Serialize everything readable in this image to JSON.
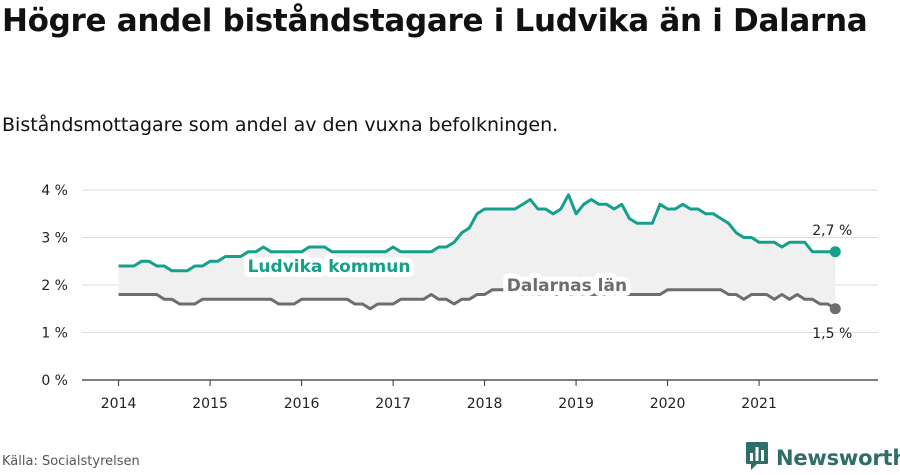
{
  "title": "Högre andel biståndstagare i Ludvika än i Dalarna",
  "subtitle": "Biståndsmottagare som andel av den vuxna befolkningen.",
  "source": "Källa: Socialstyrelsen",
  "brand": {
    "name": "Newsworthy",
    "icon": "newsworthy-bar-chart-logo-icon"
  },
  "colors": {
    "ludvika": "#15a08c",
    "dalarna": "#6d6d70",
    "band": "#f0f0f0",
    "grid": "#dddddd"
  },
  "chart_data": {
    "type": "line",
    "y_ticks": [
      "0 %",
      "1 %",
      "2 %",
      "3 %",
      "4 %"
    ],
    "ylim": [
      0,
      4
    ],
    "x_ticks": [
      "2014",
      "2015",
      "2016",
      "2017",
      "2018",
      "2019",
      "2020",
      "2021"
    ],
    "xlim": [
      2013.6,
      2022.3
    ],
    "grid": "horizontal",
    "x": [
      2014.0,
      2014.083,
      2014.167,
      2014.25,
      2014.333,
      2014.417,
      2014.5,
      2014.583,
      2014.667,
      2014.75,
      2014.833,
      2014.917,
      2015.0,
      2015.083,
      2015.167,
      2015.25,
      2015.333,
      2015.417,
      2015.5,
      2015.583,
      2015.667,
      2015.75,
      2015.833,
      2015.917,
      2016.0,
      2016.083,
      2016.167,
      2016.25,
      2016.333,
      2016.417,
      2016.5,
      2016.583,
      2016.667,
      2016.75,
      2016.833,
      2016.917,
      2017.0,
      2017.083,
      2017.167,
      2017.25,
      2017.333,
      2017.417,
      2017.5,
      2017.583,
      2017.667,
      2017.75,
      2017.833,
      2017.917,
      2018.0,
      2018.083,
      2018.167,
      2018.25,
      2018.333,
      2018.417,
      2018.5,
      2018.583,
      2018.667,
      2018.75,
      2018.833,
      2018.917,
      2019.0,
      2019.083,
      2019.167,
      2019.25,
      2019.333,
      2019.417,
      2019.5,
      2019.583,
      2019.667,
      2019.75,
      2019.833,
      2019.917,
      2020.0,
      2020.083,
      2020.167,
      2020.25,
      2020.333,
      2020.417,
      2020.5,
      2020.583,
      2020.667,
      2020.75,
      2020.833,
      2020.917,
      2021.0,
      2021.083,
      2021.167,
      2021.25,
      2021.333,
      2021.417,
      2021.5,
      2021.583,
      2021.667,
      2021.75,
      2021.833
    ],
    "series": [
      {
        "name": "Ludvika kommun",
        "end_label": "2,7 %",
        "values": [
          2.4,
          2.4,
          2.4,
          2.5,
          2.5,
          2.4,
          2.4,
          2.3,
          2.3,
          2.3,
          2.4,
          2.4,
          2.5,
          2.5,
          2.6,
          2.6,
          2.6,
          2.7,
          2.7,
          2.8,
          2.7,
          2.7,
          2.7,
          2.7,
          2.7,
          2.8,
          2.8,
          2.8,
          2.7,
          2.7,
          2.7,
          2.7,
          2.7,
          2.7,
          2.7,
          2.7,
          2.8,
          2.7,
          2.7,
          2.7,
          2.7,
          2.7,
          2.8,
          2.8,
          2.9,
          3.1,
          3.2,
          3.5,
          3.6,
          3.6,
          3.6,
          3.6,
          3.6,
          3.7,
          3.8,
          3.6,
          3.6,
          3.5,
          3.6,
          3.9,
          3.5,
          3.7,
          3.8,
          3.7,
          3.7,
          3.6,
          3.7,
          3.4,
          3.3,
          3.3,
          3.3,
          3.7,
          3.6,
          3.6,
          3.7,
          3.6,
          3.6,
          3.5,
          3.5,
          3.4,
          3.3,
          3.1,
          3.0,
          3.0,
          2.9,
          2.9,
          2.9,
          2.8,
          2.9,
          2.9,
          2.9,
          2.7,
          2.7,
          2.7,
          2.7
        ]
      },
      {
        "name": "Dalarnas län",
        "end_label": "1,5 %",
        "values": [
          1.8,
          1.8,
          1.8,
          1.8,
          1.8,
          1.8,
          1.7,
          1.7,
          1.6,
          1.6,
          1.6,
          1.7,
          1.7,
          1.7,
          1.7,
          1.7,
          1.7,
          1.7,
          1.7,
          1.7,
          1.7,
          1.6,
          1.6,
          1.6,
          1.7,
          1.7,
          1.7,
          1.7,
          1.7,
          1.7,
          1.7,
          1.6,
          1.6,
          1.5,
          1.6,
          1.6,
          1.6,
          1.7,
          1.7,
          1.7,
          1.7,
          1.8,
          1.7,
          1.7,
          1.6,
          1.7,
          1.7,
          1.8,
          1.8,
          1.9,
          1.9,
          1.9,
          1.9,
          1.8,
          1.8,
          1.8,
          1.8,
          1.8,
          1.8,
          1.8,
          1.8,
          1.8,
          1.8,
          1.8,
          1.8,
          1.8,
          1.8,
          1.8,
          1.8,
          1.8,
          1.8,
          1.8,
          1.9,
          1.9,
          1.9,
          1.9,
          1.9,
          1.9,
          1.9,
          1.9,
          1.8,
          1.8,
          1.7,
          1.8,
          1.8,
          1.8,
          1.7,
          1.8,
          1.7,
          1.8,
          1.7,
          1.7,
          1.6,
          1.6,
          1.5
        ]
      }
    ]
  }
}
